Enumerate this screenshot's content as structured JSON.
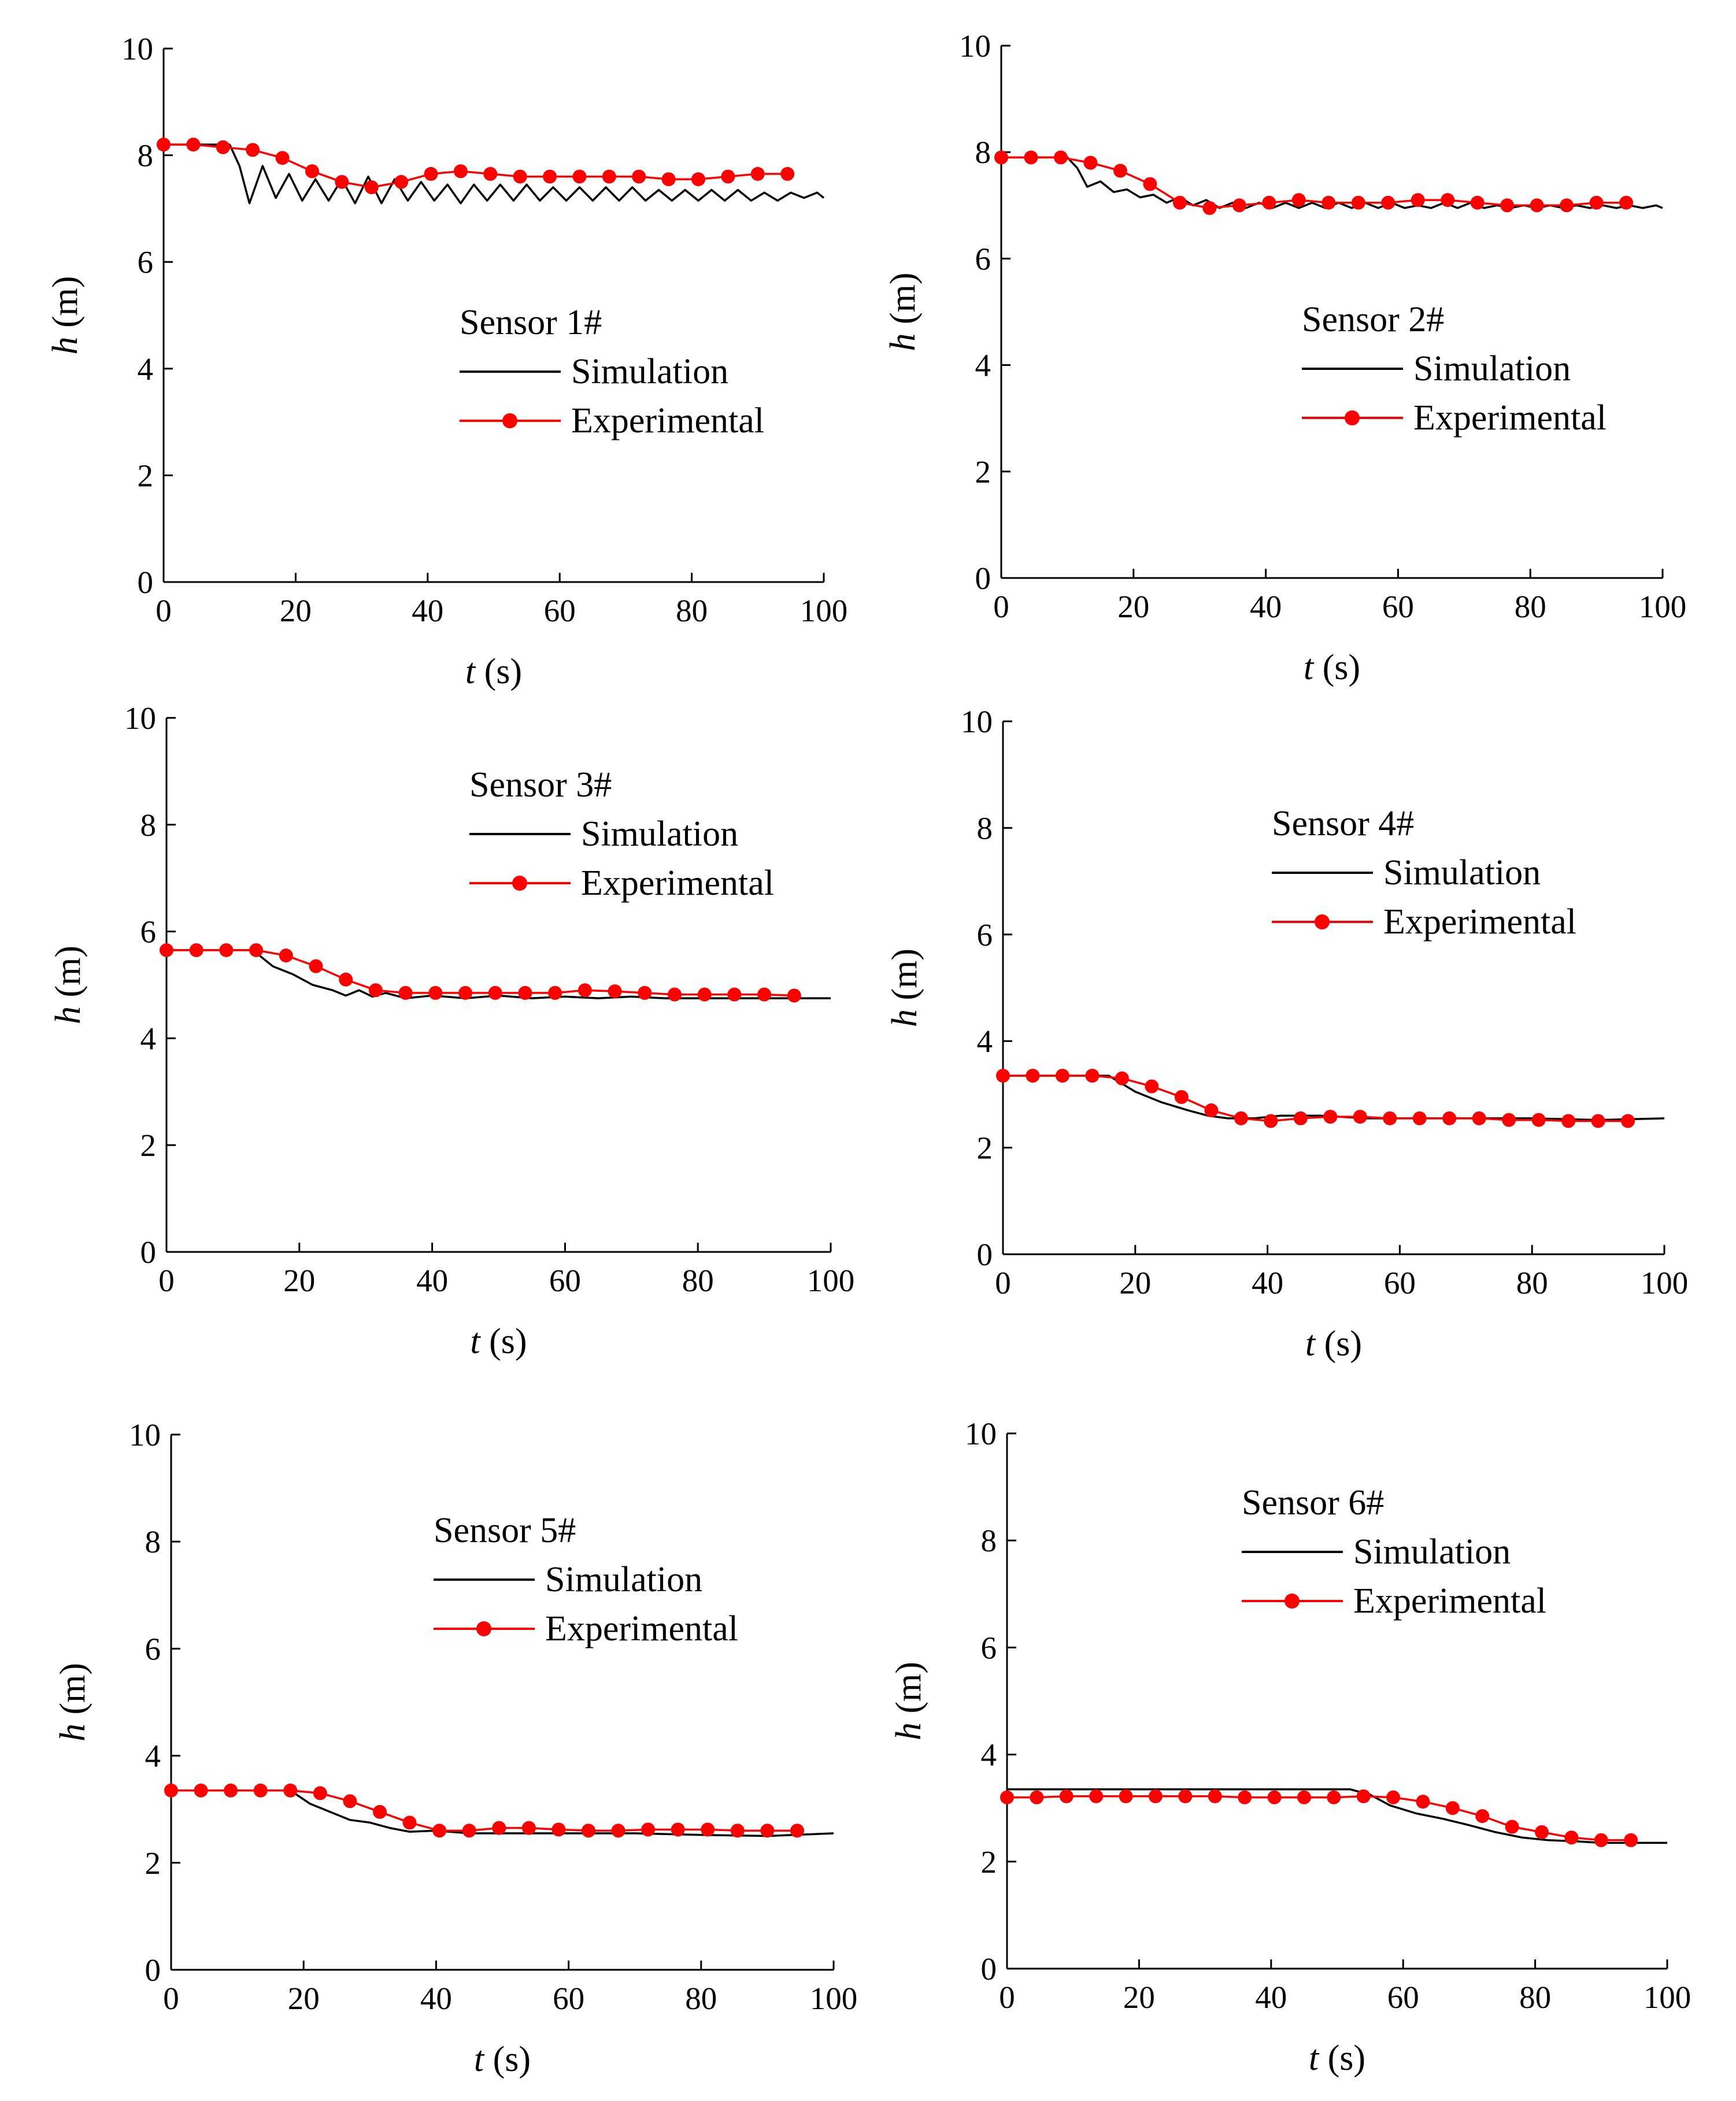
{
  "figure": {
    "colors": {
      "simulation": "#000000",
      "experimental": "#ff0000",
      "axis": "#000000"
    }
  },
  "chart_data": [
    {
      "type": "line",
      "title": "",
      "legend_title": "Sensor 1#",
      "xlabel_var": "t",
      "xlabel_unit": "(s)",
      "ylabel_var": "h",
      "ylabel_unit": "(m)",
      "xlim": [
        0,
        100
      ],
      "ylim": [
        0,
        10
      ],
      "xticks": [
        0,
        20,
        40,
        60,
        80,
        100
      ],
      "yticks": [
        0,
        2,
        4,
        6,
        8,
        10
      ],
      "grid": false,
      "legend_position": "center-right",
      "series": [
        {
          "name": "Simulation",
          "color": "#000000",
          "marker": "none",
          "x": [
            0,
            10,
            11.5,
            13,
            15,
            17,
            19,
            21,
            23,
            25,
            27,
            29,
            31,
            33,
            35,
            37,
            39,
            41,
            43,
            45,
            47,
            49,
            51,
            53,
            55,
            57,
            59,
            61,
            63,
            65,
            67,
            69,
            71,
            73,
            75,
            77,
            79,
            81,
            83,
            85,
            87,
            89,
            91,
            93,
            95,
            97,
            99,
            100
          ],
          "y": [
            8.2,
            8.2,
            7.8,
            7.1,
            7.8,
            7.2,
            7.65,
            7.15,
            7.55,
            7.15,
            7.55,
            7.1,
            7.6,
            7.1,
            7.55,
            7.15,
            7.5,
            7.15,
            7.45,
            7.1,
            7.45,
            7.15,
            7.45,
            7.15,
            7.45,
            7.15,
            7.4,
            7.15,
            7.4,
            7.15,
            7.4,
            7.15,
            7.4,
            7.15,
            7.35,
            7.15,
            7.35,
            7.15,
            7.35,
            7.15,
            7.35,
            7.15,
            7.3,
            7.15,
            7.3,
            7.2,
            7.3,
            7.2
          ]
        },
        {
          "name": "Experimental",
          "color": "#ff0000",
          "marker": "circle",
          "x": [
            0,
            4.5,
            9,
            13.5,
            18,
            22.5,
            27,
            31.5,
            36,
            40.5,
            45,
            49.5,
            54,
            58.5,
            63,
            67.5,
            72,
            76.5,
            81,
            85.5,
            90,
            94.5
          ],
          "y": [
            8.2,
            8.2,
            8.15,
            8.1,
            7.95,
            7.7,
            7.5,
            7.4,
            7.5,
            7.65,
            7.7,
            7.65,
            7.6,
            7.6,
            7.6,
            7.6,
            7.6,
            7.55,
            7.55,
            7.6,
            7.65,
            7.65
          ]
        }
      ]
    },
    {
      "type": "line",
      "title": "",
      "legend_title": "Sensor 2#",
      "xlabel_var": "t",
      "xlabel_unit": "(s)",
      "ylabel_var": "h",
      "ylabel_unit": "(m)",
      "xlim": [
        0,
        100
      ],
      "ylim": [
        0,
        10
      ],
      "xticks": [
        0,
        20,
        40,
        60,
        80,
        100
      ],
      "yticks": [
        0,
        2,
        4,
        6,
        8,
        10
      ],
      "grid": false,
      "legend_position": "center-right",
      "series": [
        {
          "name": "Simulation",
          "color": "#000000",
          "marker": "none",
          "x": [
            0,
            10,
            11.5,
            13,
            15,
            17,
            19,
            21,
            23,
            25,
            27,
            29,
            31,
            33,
            35,
            37,
            39,
            41,
            43,
            45,
            47,
            49,
            51,
            53,
            55,
            57,
            59,
            61,
            63,
            65,
            67,
            69,
            71,
            73,
            75,
            77,
            79,
            81,
            83,
            85,
            87,
            89,
            91,
            93,
            95,
            97,
            99,
            100
          ],
          "y": [
            7.9,
            7.9,
            7.7,
            7.35,
            7.45,
            7.25,
            7.3,
            7.15,
            7.2,
            7.05,
            7.15,
            7.0,
            7.1,
            6.95,
            7.05,
            6.95,
            7.05,
            6.95,
            7.05,
            6.95,
            7.05,
            6.95,
            7.05,
            6.95,
            7.05,
            6.95,
            7.05,
            6.95,
            7.0,
            6.95,
            7.05,
            6.95,
            7.05,
            6.95,
            7.0,
            6.95,
            7.0,
            6.95,
            7.0,
            6.95,
            7.0,
            6.95,
            7.0,
            6.95,
            7.0,
            6.95,
            7.0,
            6.95
          ]
        },
        {
          "name": "Experimental",
          "color": "#ff0000",
          "marker": "circle",
          "x": [
            0,
            4.5,
            9,
            13.5,
            18,
            22.5,
            27,
            31.5,
            36,
            40.5,
            45,
            49.5,
            54,
            58.5,
            63,
            67.5,
            72,
            76.5,
            81,
            85.5,
            90,
            94.5
          ],
          "y": [
            7.9,
            7.9,
            7.9,
            7.8,
            7.65,
            7.4,
            7.05,
            6.95,
            7.0,
            7.05,
            7.1,
            7.05,
            7.05,
            7.05,
            7.1,
            7.1,
            7.05,
            7.0,
            7.0,
            7.0,
            7.05,
            7.05
          ]
        }
      ]
    },
    {
      "type": "line",
      "title": "",
      "legend_title": "Sensor 3#",
      "xlabel_var": "t",
      "xlabel_unit": "(s)",
      "ylabel_var": "h",
      "ylabel_unit": "(m)",
      "xlim": [
        0,
        100
      ],
      "ylim": [
        0,
        10
      ],
      "xticks": [
        0,
        20,
        40,
        60,
        80,
        100
      ],
      "yticks": [
        0,
        2,
        4,
        6,
        8,
        10
      ],
      "grid": false,
      "legend_position": "center-right",
      "series": [
        {
          "name": "Simulation",
          "color": "#000000",
          "marker": "none",
          "x": [
            0,
            13,
            16,
            19,
            22,
            25,
            27,
            29,
            31,
            33,
            36,
            40,
            45,
            50,
            55,
            60,
            65,
            70,
            75,
            80,
            85,
            90,
            95,
            100
          ],
          "y": [
            5.65,
            5.65,
            5.35,
            5.2,
            5.0,
            4.9,
            4.8,
            4.9,
            4.78,
            4.85,
            4.75,
            4.8,
            4.75,
            4.8,
            4.75,
            4.78,
            4.75,
            4.78,
            4.75,
            4.75,
            4.75,
            4.75,
            4.75,
            4.75
          ]
        },
        {
          "name": "Experimental",
          "color": "#ff0000",
          "marker": "circle",
          "x": [
            0,
            4.5,
            9,
            13.5,
            18,
            22.5,
            27,
            31.5,
            36,
            40.5,
            45,
            49.5,
            54,
            58.5,
            63,
            67.5,
            72,
            76.5,
            81,
            85.5,
            90,
            94.5
          ],
          "y": [
            5.65,
            5.65,
            5.65,
            5.65,
            5.55,
            5.35,
            5.1,
            4.9,
            4.85,
            4.85,
            4.85,
            4.85,
            4.85,
            4.85,
            4.9,
            4.88,
            4.85,
            4.82,
            4.82,
            4.82,
            4.82,
            4.8
          ]
        }
      ]
    },
    {
      "type": "line",
      "title": "",
      "legend_title": "Sensor 4#",
      "xlabel_var": "t",
      "xlabel_unit": "(s)",
      "ylabel_var": "h",
      "ylabel_unit": "(m)",
      "xlim": [
        0,
        100
      ],
      "ylim": [
        0,
        10
      ],
      "xticks": [
        0,
        20,
        40,
        60,
        80,
        100
      ],
      "yticks": [
        0,
        2,
        4,
        6,
        8,
        10
      ],
      "grid": false,
      "legend_position": "upper-center",
      "series": [
        {
          "name": "Simulation",
          "color": "#000000",
          "marker": "none",
          "x": [
            0,
            16,
            20,
            24,
            28,
            31,
            34,
            38,
            42,
            48,
            55,
            60,
            70,
            80,
            90,
            100
          ],
          "y": [
            3.35,
            3.35,
            3.05,
            2.85,
            2.7,
            2.6,
            2.55,
            2.55,
            2.6,
            2.6,
            2.55,
            2.55,
            2.55,
            2.55,
            2.52,
            2.55
          ]
        },
        {
          "name": "Experimental",
          "color": "#ff0000",
          "marker": "circle",
          "x": [
            0,
            4.5,
            9,
            13.5,
            18,
            22.5,
            27,
            31.5,
            36,
            40.5,
            45,
            49.5,
            54,
            58.5,
            63,
            67.5,
            72,
            76.5,
            81,
            85.5,
            90,
            94.5
          ],
          "y": [
            3.35,
            3.35,
            3.35,
            3.35,
            3.3,
            3.15,
            2.95,
            2.7,
            2.55,
            2.5,
            2.55,
            2.58,
            2.58,
            2.55,
            2.55,
            2.55,
            2.55,
            2.52,
            2.52,
            2.5,
            2.5,
            2.5
          ]
        }
      ]
    },
    {
      "type": "line",
      "title": "",
      "legend_title": "Sensor 5#",
      "xlabel_var": "t",
      "xlabel_unit": "(s)",
      "ylabel_var": "h",
      "ylabel_unit": "(m)",
      "xlim": [
        0,
        100
      ],
      "ylim": [
        0,
        10
      ],
      "xticks": [
        0,
        20,
        40,
        60,
        80,
        100
      ],
      "yticks": [
        0,
        2,
        4,
        6,
        8,
        10
      ],
      "grid": false,
      "legend_position": "center-right",
      "series": [
        {
          "name": "Simulation",
          "color": "#000000",
          "marker": "none",
          "x": [
            0,
            18,
            21,
            24,
            27,
            30,
            33,
            36,
            40,
            45,
            50,
            55,
            60,
            70,
            80,
            90,
            100
          ],
          "y": [
            3.35,
            3.35,
            3.1,
            2.95,
            2.8,
            2.75,
            2.65,
            2.58,
            2.6,
            2.55,
            2.55,
            2.55,
            2.55,
            2.55,
            2.52,
            2.5,
            2.55
          ]
        },
        {
          "name": "Experimental",
          "color": "#ff0000",
          "marker": "circle",
          "x": [
            0,
            4.5,
            9,
            13.5,
            18,
            22.5,
            27,
            31.5,
            36,
            40.5,
            45,
            49.5,
            54,
            58.5,
            63,
            67.5,
            72,
            76.5,
            81,
            85.5,
            90,
            94.5
          ],
          "y": [
            3.35,
            3.35,
            3.35,
            3.35,
            3.35,
            3.3,
            3.15,
            2.95,
            2.75,
            2.6,
            2.6,
            2.65,
            2.65,
            2.62,
            2.6,
            2.6,
            2.62,
            2.62,
            2.62,
            2.6,
            2.6,
            2.6
          ]
        }
      ]
    },
    {
      "type": "line",
      "title": "",
      "legend_title": "Sensor 6#",
      "xlabel_var": "t",
      "xlabel_unit": "(s)",
      "ylabel_var": "h",
      "ylabel_unit": "(m)",
      "xlim": [
        0,
        100
      ],
      "ylim": [
        0,
        10
      ],
      "xticks": [
        0,
        20,
        40,
        60,
        80,
        100
      ],
      "yticks": [
        0,
        2,
        4,
        6,
        8,
        10
      ],
      "grid": false,
      "legend_position": "upper-center",
      "series": [
        {
          "name": "Simulation",
          "color": "#000000",
          "marker": "none",
          "x": [
            0,
            40,
            52,
            55,
            58,
            62,
            66,
            70,
            74,
            78,
            82,
            86,
            90,
            95,
            100
          ],
          "y": [
            3.35,
            3.35,
            3.35,
            3.25,
            3.05,
            2.9,
            2.8,
            2.68,
            2.55,
            2.45,
            2.4,
            2.38,
            2.35,
            2.35,
            2.35
          ]
        },
        {
          "name": "Experimental",
          "color": "#ff0000",
          "marker": "circle",
          "x": [
            0,
            4.5,
            9,
            13.5,
            18,
            22.5,
            27,
            31.5,
            36,
            40.5,
            45,
            49.5,
            54,
            58.5,
            63,
            67.5,
            72,
            76.5,
            81,
            85.5,
            90,
            94.5
          ],
          "y": [
            3.2,
            3.2,
            3.22,
            3.22,
            3.22,
            3.22,
            3.22,
            3.22,
            3.2,
            3.2,
            3.2,
            3.2,
            3.22,
            3.2,
            3.12,
            3.0,
            2.85,
            2.65,
            2.55,
            2.45,
            2.4,
            2.4
          ]
        }
      ]
    }
  ]
}
